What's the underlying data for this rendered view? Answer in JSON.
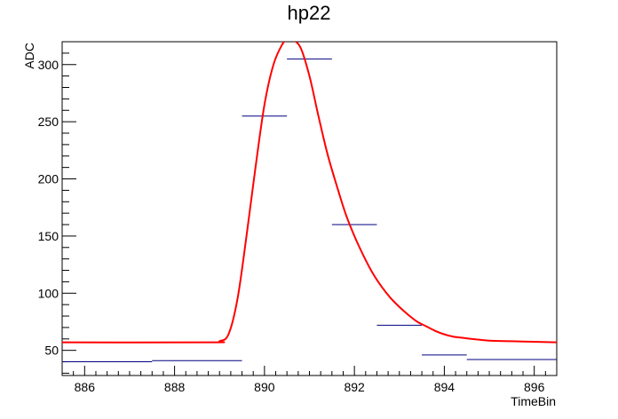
{
  "chart_data": {
    "type": "line",
    "title": "hp22",
    "xlabel": "TimeBin",
    "ylabel": "ADC",
    "xlim": [
      885.5,
      896.5
    ],
    "ylim": [
      28,
      320
    ],
    "x_ticks": [
      886,
      888,
      890,
      892,
      894,
      896
    ],
    "y_ticks": [
      50,
      100,
      150,
      200,
      250,
      300
    ],
    "grid": false,
    "series": [
      {
        "kind": "histogram",
        "color": "#000080",
        "bins": [
          {
            "x0": 885.5,
            "x1": 887.5,
            "y": 40
          },
          {
            "x0": 887.5,
            "x1": 889.5,
            "y": 41
          },
          {
            "x0": 889.5,
            "x1": 890.5,
            "y": 255
          },
          {
            "x0": 890.5,
            "x1": 891.5,
            "y": 305
          },
          {
            "x0": 891.5,
            "x1": 892.5,
            "y": 160
          },
          {
            "x0": 892.5,
            "x1": 893.5,
            "y": 72
          },
          {
            "x0": 893.5,
            "x1": 894.5,
            "y": 46
          },
          {
            "x0": 894.5,
            "x1": 896.5,
            "y": 42
          }
        ]
      },
      {
        "kind": "fit",
        "color": "#ff0000",
        "x": [
          885.5,
          888.8,
          889.0,
          889.2,
          889.4,
          889.6,
          889.8,
          890.0,
          890.2,
          890.4,
          890.5,
          890.6,
          890.8,
          891.0,
          891.2,
          891.4,
          891.6,
          891.8,
          892.0,
          892.2,
          892.4,
          892.6,
          892.8,
          893.0,
          893.2,
          893.4,
          893.6,
          893.8,
          894.0,
          894.2,
          894.4,
          894.6,
          895.0,
          895.5,
          896.0,
          896.5
        ],
        "y": [
          57,
          57,
          58,
          64,
          95,
          150,
          210,
          265,
          300,
          318,
          321,
          322,
          315,
          290,
          255,
          222,
          195,
          170,
          150,
          133,
          118,
          106,
          96,
          88,
          81,
          75,
          71,
          67,
          64,
          62,
          61,
          60,
          58.5,
          58,
          57.5,
          57
        ]
      }
    ]
  }
}
